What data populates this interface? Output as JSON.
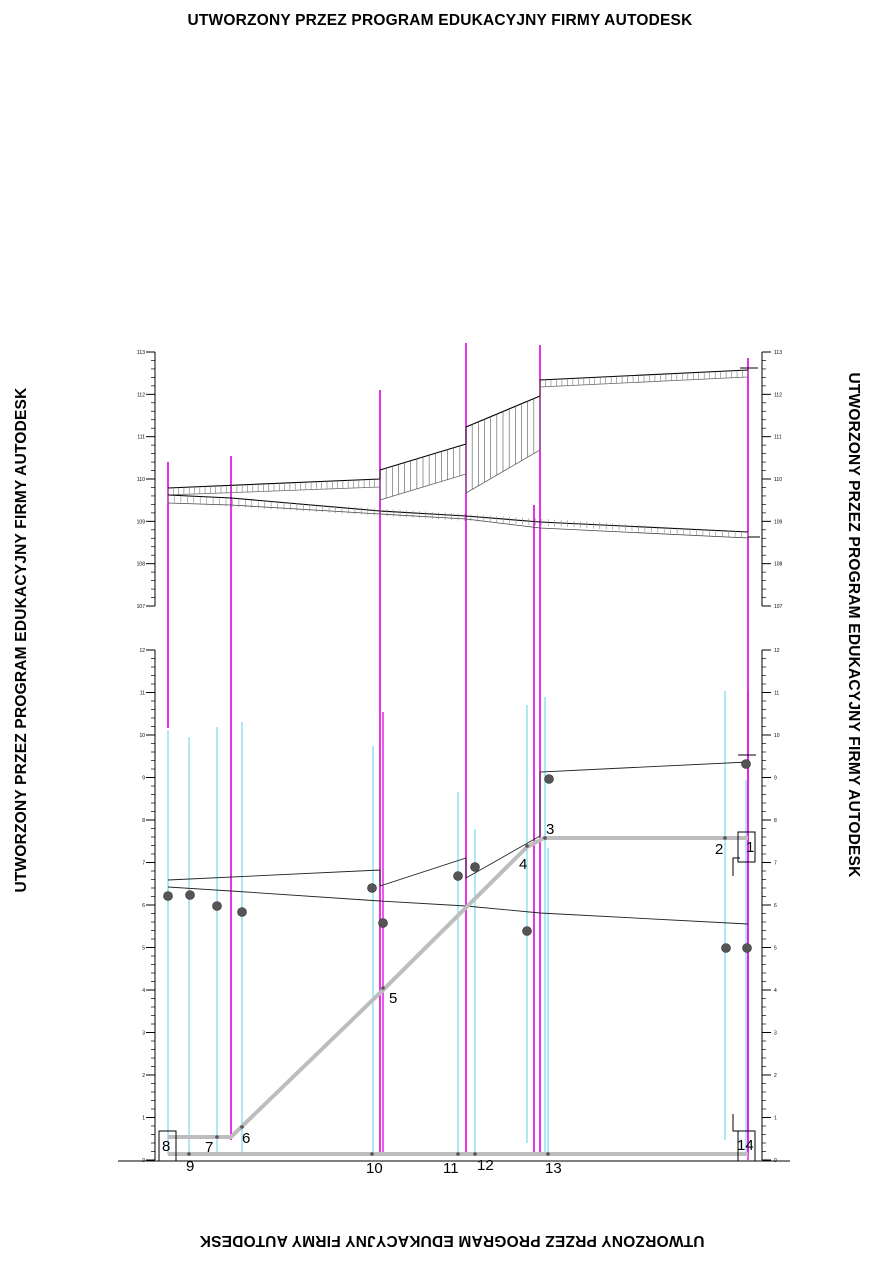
{
  "watermark": {
    "text": "UTWORZONY PRZEZ PROGRAM EDUKACYJNY FIRMY AUTODESK"
  },
  "colors": {
    "magenta": "#e000e0",
    "cyan": "#5fd0e8",
    "gray_line": "#bdbdbd",
    "dot": "#555555"
  },
  "upper_scale": {
    "ticks": [
      "113",
      "112",
      "111",
      "110",
      "109",
      "108",
      "107"
    ]
  },
  "lower_scale": {
    "ticks": [
      "12",
      "11",
      "10",
      "9",
      "8",
      "7",
      "6",
      "5",
      "4",
      "3",
      "2",
      "1",
      "0"
    ]
  },
  "point_labels": [
    {
      "text": "1"
    },
    {
      "text": "2"
    },
    {
      "text": "3"
    },
    {
      "text": "4"
    },
    {
      "text": "5"
    },
    {
      "text": "6"
    },
    {
      "text": "7"
    },
    {
      "text": "8"
    },
    {
      "text": "9"
    },
    {
      "text": "10"
    },
    {
      "text": "11"
    },
    {
      "text": "12"
    },
    {
      "text": "13"
    },
    {
      "text": "14"
    }
  ]
}
